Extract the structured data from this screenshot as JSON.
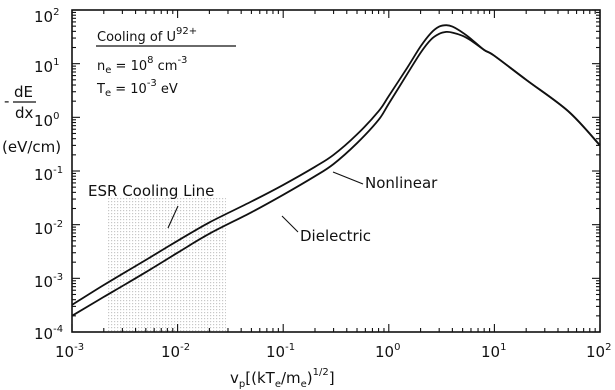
{
  "chart_data": {
    "type": "line",
    "x_scale": "log",
    "y_scale": "log",
    "xlim": [
      0.001,
      100
    ],
    "ylim": [
      0.0001,
      100
    ],
    "x_ticks": [
      {
        "base": "10",
        "exp": "-3"
      },
      {
        "base": "10",
        "exp": "-2"
      },
      {
        "base": "10",
        "exp": "-1"
      },
      {
        "base": "10",
        "exp": "0"
      },
      {
        "base": "10",
        "exp": "1"
      },
      {
        "base": "10",
        "exp": "2"
      }
    ],
    "y_ticks": [
      {
        "base": "10",
        "exp": "-4"
      },
      {
        "base": "10",
        "exp": "-3"
      },
      {
        "base": "10",
        "exp": "-2"
      },
      {
        "base": "10",
        "exp": "-1"
      },
      {
        "base": "10",
        "exp": "0"
      },
      {
        "base": "10",
        "exp": "1"
      },
      {
        "base": "10",
        "exp": "2"
      }
    ],
    "xlabel": {
      "main": "v",
      "sub": "p",
      "bracket_open": "[(kT",
      "sub2": "e",
      "mid": "/m",
      "sub3": "e",
      "close": ")",
      "exp": "1/2",
      "bracket_close": "]"
    },
    "ylabel": {
      "minus": "-",
      "numerator": "dE",
      "denominator": "dx",
      "unit": "(eV/cm)"
    },
    "annotation": {
      "title": "Cooling of U",
      "title_sup": "92+",
      "ne": "n",
      "ne_sub": "e",
      "ne_val": " = 10",
      "ne_exp": "8",
      "ne_unit": " cm",
      "ne_unit_exp": "-3",
      "te": "T",
      "te_sub": "e",
      "te_val": " = 10",
      "te_exp": "-3",
      "te_unit": " eV"
    },
    "region_label": "ESR Cooling Line",
    "series": [
      {
        "name": "Nonlinear",
        "x": [
          0.001,
          0.002,
          0.005,
          0.01,
          0.02,
          0.05,
          0.1,
          0.2,
          0.3,
          0.5,
          0.8,
          1.0,
          1.5,
          2.0,
          2.5,
          3.0,
          3.5,
          4.0,
          5.0,
          6.0,
          8.0,
          10,
          20,
          50,
          100
        ],
        "y": [
          0.00032,
          0.00075,
          0.0022,
          0.005,
          0.011,
          0.027,
          0.055,
          0.12,
          0.2,
          0.48,
          1.3,
          2.5,
          8.5,
          21,
          37,
          49,
          52,
          49,
          38,
          29,
          18,
          14,
          5,
          1.3,
          0.3
        ]
      },
      {
        "name": "Dielectric",
        "x": [
          0.001,
          0.002,
          0.005,
          0.01,
          0.02,
          0.05,
          0.1,
          0.2,
          0.3,
          0.5,
          0.8,
          1.0,
          1.5,
          2.0,
          2.5,
          3.0,
          3.5,
          4.0,
          5.0,
          6.0,
          8.0,
          10,
          20,
          50,
          100
        ],
        "y": [
          0.0002,
          0.00045,
          0.0013,
          0.003,
          0.0068,
          0.017,
          0.036,
          0.08,
          0.135,
          0.33,
          0.9,
          1.8,
          6.5,
          16,
          28,
          36,
          39,
          38,
          33,
          27,
          18,
          14,
          5,
          1.3,
          0.3
        ]
      }
    ],
    "colors": {
      "line": "#111111",
      "shade": "#bbbbbb",
      "background": "#ffffff"
    }
  }
}
